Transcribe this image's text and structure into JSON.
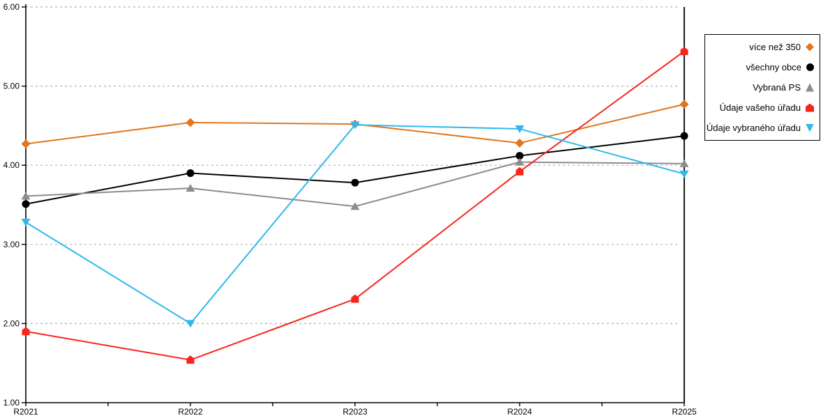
{
  "chart_data": {
    "type": "line",
    "title": "",
    "xlabel": "",
    "ylabel": "",
    "categories": [
      "R2021",
      "R2022",
      "R2023",
      "R2024",
      "R2025"
    ],
    "series": [
      {
        "name": "více než 350",
        "color": "#E0761E",
        "marker": "diamond",
        "values": [
          4.27,
          4.54,
          4.52,
          4.28,
          4.77
        ]
      },
      {
        "name": "všechny obce",
        "color": "#000000",
        "marker": "circle",
        "values": [
          3.51,
          3.9,
          3.78,
          4.12,
          4.37
        ]
      },
      {
        "name": "Vybraná PS",
        "color": "#8C8C8C",
        "marker": "triangle-up",
        "values": [
          3.61,
          3.71,
          3.48,
          4.04,
          4.02
        ]
      },
      {
        "name": "Údaje vašeho úřadu",
        "color": "#F7251C",
        "marker": "pentagon",
        "values": [
          1.9,
          1.54,
          2.31,
          3.92,
          5.44
        ]
      },
      {
        "name": "Údaje vybraného úřadu",
        "color": "#2FB8EC",
        "marker": "triangle-down",
        "values": [
          3.28,
          2.0,
          4.51,
          4.46,
          3.89
        ]
      }
    ],
    "ylim": [
      1.0,
      6.0
    ],
    "y_tick_labels": [
      "6.00",
      "5.00",
      "4.00",
      "3.00",
      "2.00",
      "1.00"
    ],
    "x_minor_ticks_per_interval": 1,
    "grid": "horizontal-dashed",
    "gridline_color": "#B0B0B0",
    "axis_color": "#000000",
    "legend_position": "right"
  }
}
